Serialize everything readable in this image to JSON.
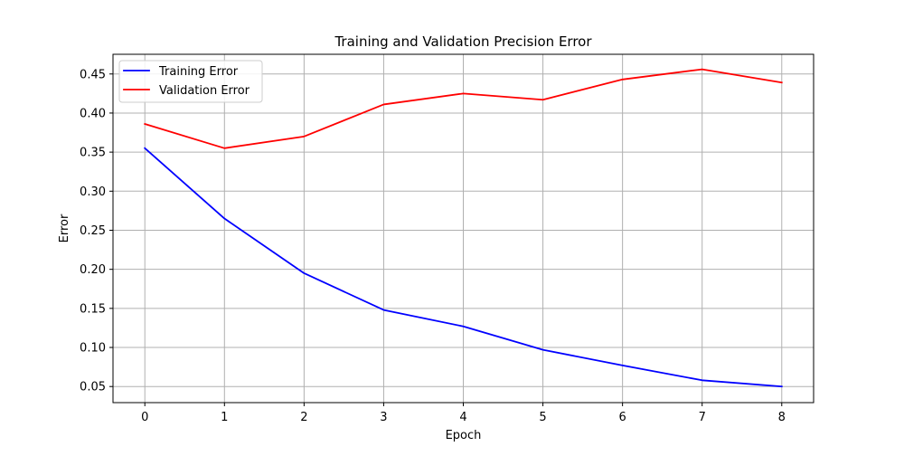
{
  "chart_data": {
    "type": "line",
    "title": "Training and Validation Precision Error",
    "xlabel": "Epoch",
    "ylabel": "Error",
    "x": [
      0,
      1,
      2,
      3,
      4,
      5,
      6,
      7,
      8
    ],
    "xlim": [
      -0.4,
      8.4
    ],
    "ylim": [
      0.0294,
      0.4752
    ],
    "xticks": [
      0,
      1,
      2,
      3,
      4,
      5,
      6,
      7,
      8
    ],
    "xtick_labels": [
      "0",
      "1",
      "2",
      "3",
      "4",
      "5",
      "6",
      "7",
      "8"
    ],
    "yticks": [
      0.05,
      0.1,
      0.15,
      0.2,
      0.25,
      0.3,
      0.35,
      0.4,
      0.45
    ],
    "ytick_labels": [
      "0.05",
      "0.10",
      "0.15",
      "0.20",
      "0.25",
      "0.30",
      "0.35",
      "0.40",
      "0.45"
    ],
    "grid": true,
    "legend_position": "top-left",
    "series": [
      {
        "name": "Training Error",
        "color": "#0000ff",
        "values": [
          0.355,
          0.265,
          0.195,
          0.148,
          0.127,
          0.097,
          0.077,
          0.058,
          0.05
        ]
      },
      {
        "name": "Validation Error",
        "color": "#ff0000",
        "values": [
          0.386,
          0.355,
          0.37,
          0.411,
          0.425,
          0.417,
          0.443,
          0.456,
          0.439
        ]
      }
    ]
  }
}
